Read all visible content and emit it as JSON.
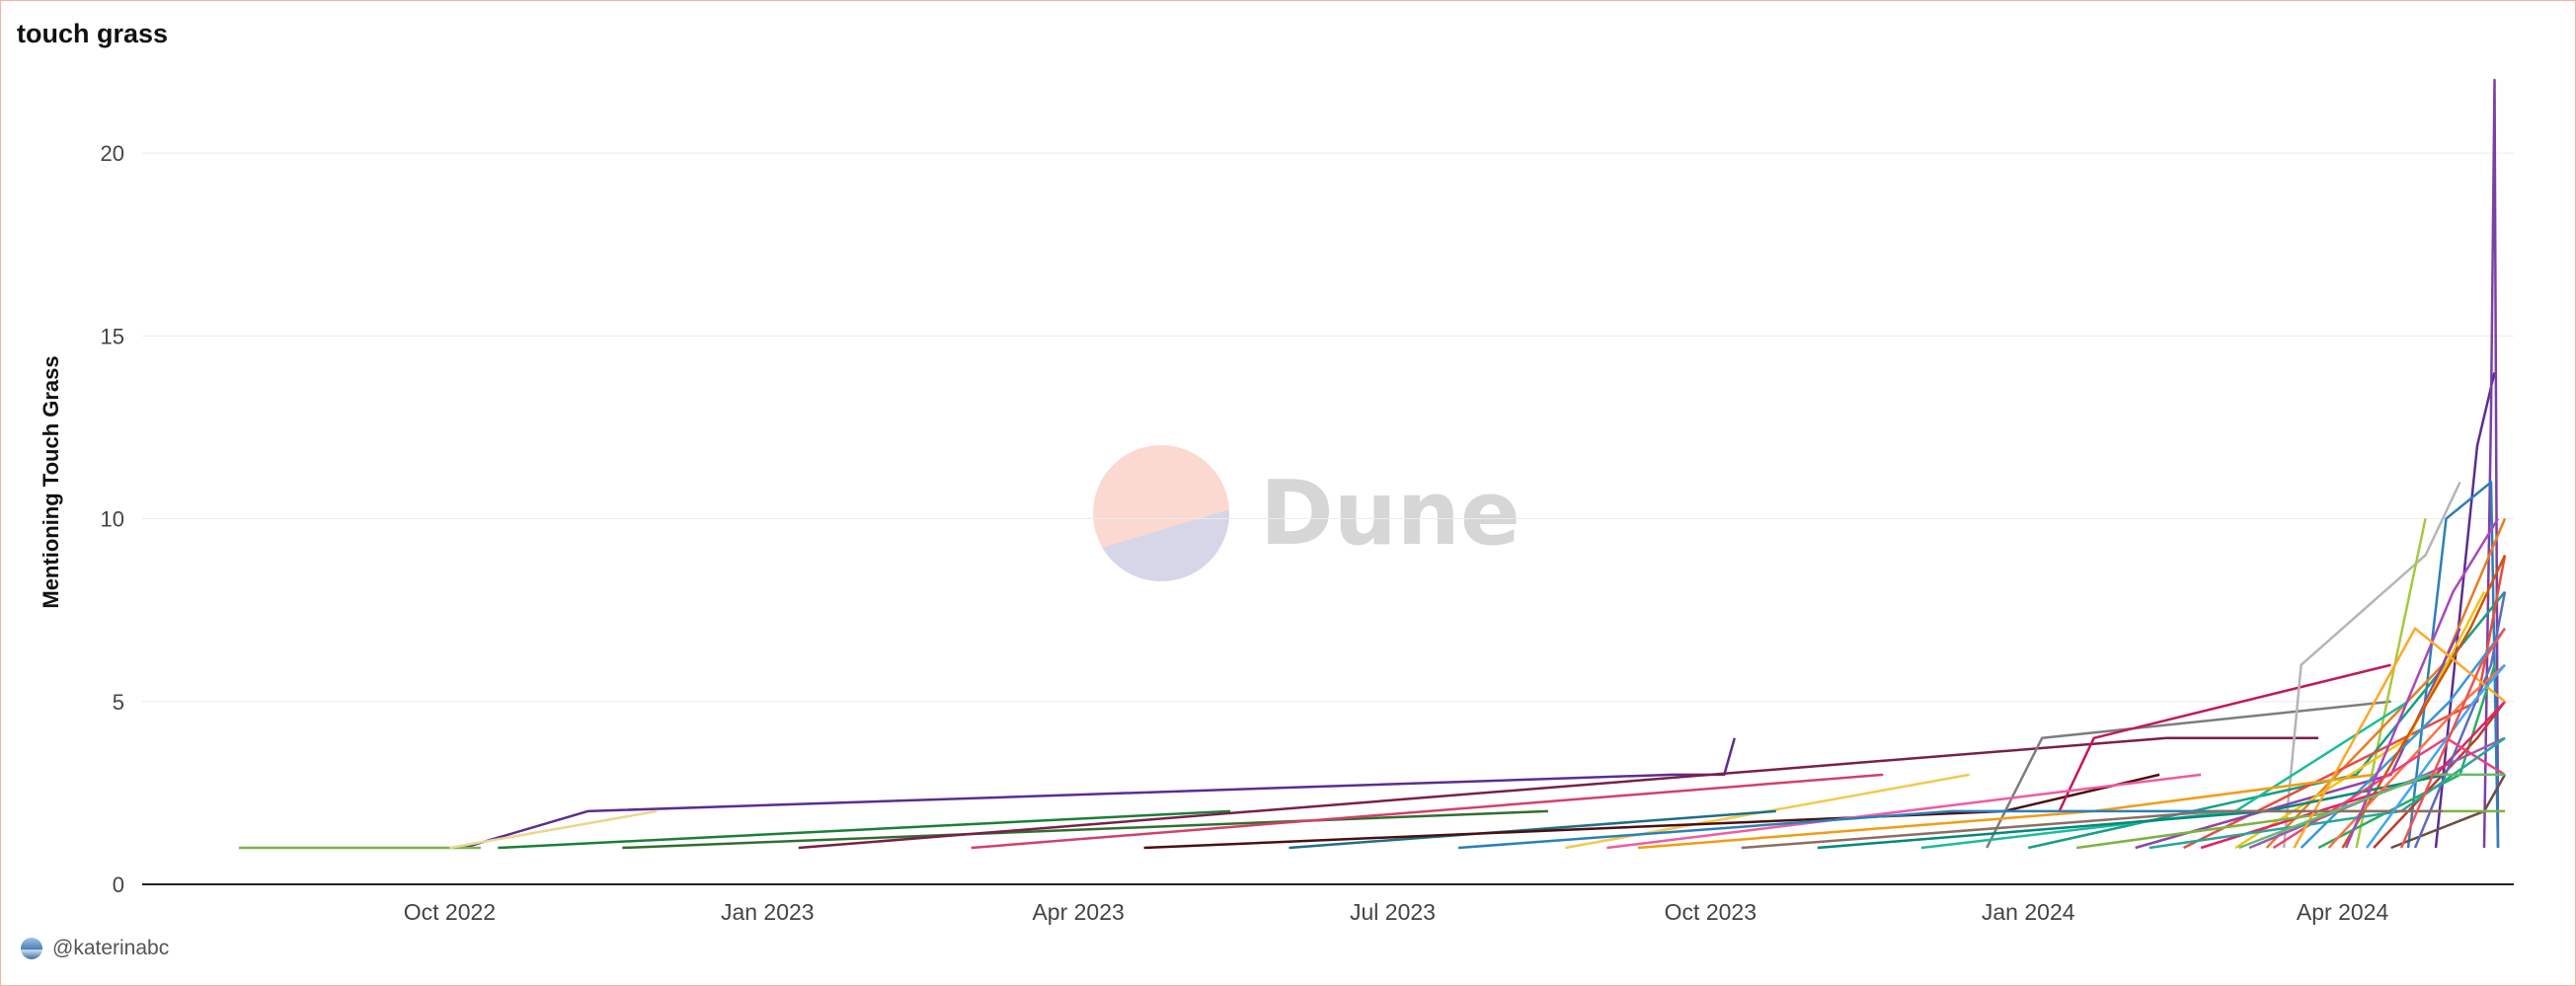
{
  "header": {
    "title": "touch grass"
  },
  "footer": {
    "author": "@katerinabc"
  },
  "watermark": {
    "text": "Dune",
    "colors": {
      "top": "#fbd8d0",
      "bottom": "#d6d6e8"
    }
  },
  "chart_data": {
    "type": "line",
    "title": "touch grass",
    "xlabel": "",
    "ylabel": "Mentioning Touch Grass",
    "x_range": [
      "2022-08-01",
      "2024-05-20"
    ],
    "x_ticks": [
      "Oct 2022",
      "Jan 2023",
      "Apr 2023",
      "Jul 2023",
      "Oct 2023",
      "Jan 2024",
      "Apr 2024"
    ],
    "x_tick_dates": [
      "2022-10-01",
      "2023-01-01",
      "2023-04-01",
      "2023-07-01",
      "2023-10-01",
      "2024-01-01",
      "2024-04-01"
    ],
    "ylim": [
      0,
      22
    ],
    "y_ticks": [
      0,
      5,
      10,
      15,
      20
    ],
    "grid": true,
    "legend": "none",
    "series": [
      {
        "color": "#5b2d90",
        "x": [
          "2022-10-05",
          "2022-11-10",
          "2023-09-20",
          "2023-10-05",
          "2023-10-08"
        ],
        "y": [
          1,
          2,
          3,
          3,
          4
        ]
      },
      {
        "color": "#7ab648",
        "x": [
          "2022-08-01",
          "2022-10-10"
        ],
        "y": [
          1,
          1
        ]
      },
      {
        "color": "#e8d890",
        "x": [
          "2022-10-01",
          "2022-11-30"
        ],
        "y": [
          1,
          2
        ]
      },
      {
        "color": "#1a7f37",
        "x": [
          "2022-10-15",
          "2023-05-15"
        ],
        "y": [
          1,
          2
        ]
      },
      {
        "color": "#2f6f2f",
        "x": [
          "2022-11-20",
          "2023-08-15"
        ],
        "y": [
          1,
          2
        ]
      },
      {
        "color": "#7a1f4a",
        "x": [
          "2023-01-10",
          "2024-02-10",
          "2024-03-25"
        ],
        "y": [
          1,
          4,
          4
        ]
      },
      {
        "color": "#d43f6b",
        "x": [
          "2023-03-01",
          "2023-11-20"
        ],
        "y": [
          1,
          3
        ]
      },
      {
        "color": "#f2c94c",
        "x": [
          "2023-08-20",
          "2023-12-15"
        ],
        "y": [
          1,
          3
        ]
      },
      {
        "color": "#1e6f86",
        "x": [
          "2023-06-01",
          "2023-10-20"
        ],
        "y": [
          1,
          2
        ]
      },
      {
        "color": "#4b0f0f",
        "x": [
          "2023-04-20",
          "2023-12-25",
          "2024-02-08"
        ],
        "y": [
          1,
          2,
          3
        ]
      },
      {
        "color": "#7d7d7d",
        "x": [
          "2023-12-20",
          "2024-01-05",
          "2024-04-15"
        ],
        "y": [
          1,
          4,
          5
        ]
      },
      {
        "color": "#c2185b",
        "x": [
          "2024-01-10",
          "2024-01-20",
          "2024-04-15"
        ],
        "y": [
          2,
          4,
          6
        ]
      },
      {
        "color": "#ef5ba1",
        "x": [
          "2023-09-01",
          "2024-02-20"
        ],
        "y": [
          1,
          3
        ]
      },
      {
        "color": "#b5b5b5",
        "x": [
          "2024-03-15",
          "2024-03-20",
          "2024-04-25",
          "2024-05-05"
        ],
        "y": [
          1,
          6,
          9,
          11
        ]
      },
      {
        "color": "#a5c93f",
        "x": [
          "2024-04-05",
          "2024-04-25"
        ],
        "y": [
          1,
          10
        ]
      },
      {
        "color": "#5a2d91",
        "x": [
          "2024-04-28",
          "2024-05-10",
          "2024-05-15"
        ],
        "y": [
          1,
          12,
          14
        ]
      },
      {
        "color": "#7b3fa8",
        "x": [
          "2024-05-12",
          "2024-05-14",
          "2024-05-15",
          "2024-05-16"
        ],
        "y": [
          1,
          13,
          22,
          1
        ]
      },
      {
        "color": "#2c7fb8",
        "x": [
          "2024-04-20",
          "2024-05-01",
          "2024-05-14",
          "2024-05-16"
        ],
        "y": [
          1,
          10,
          11,
          1
        ]
      },
      {
        "color": "#e67e22",
        "x": [
          "2024-03-10",
          "2024-04-30",
          "2024-05-18"
        ],
        "y": [
          1,
          6,
          10
        ]
      },
      {
        "color": "#16a085",
        "x": [
          "2024-01-01",
          "2024-04-05",
          "2024-05-18"
        ],
        "y": [
          1,
          3,
          8
        ]
      },
      {
        "color": "#e74c3c",
        "x": [
          "2024-02-15",
          "2024-05-10",
          "2024-05-18"
        ],
        "y": [
          1,
          5,
          9
        ]
      },
      {
        "color": "#8e44ad",
        "x": [
          "2024-02-01",
          "2024-04-15",
          "2024-05-05"
        ],
        "y": [
          1,
          3,
          7
        ]
      },
      {
        "color": "#f1c40f",
        "x": [
          "2024-03-01",
          "2024-04-20",
          "2024-05-12"
        ],
        "y": [
          1,
          4,
          8
        ]
      },
      {
        "color": "#3498db",
        "x": [
          "2024-03-20",
          "2024-05-02",
          "2024-05-18"
        ],
        "y": [
          1,
          5,
          7
        ]
      },
      {
        "color": "#1abc9c",
        "x": [
          "2023-12-01",
          "2024-03-01",
          "2024-04-20"
        ],
        "y": [
          1,
          2,
          5
        ]
      },
      {
        "color": "#d35400",
        "x": [
          "2024-04-01",
          "2024-05-08",
          "2024-05-18"
        ],
        "y": [
          1,
          7,
          9
        ]
      },
      {
        "color": "#27ae60",
        "x": [
          "2024-03-25",
          "2024-05-05",
          "2024-05-15"
        ],
        "y": [
          1,
          3,
          6
        ]
      },
      {
        "color": "#c0392b",
        "x": [
          "2024-04-10",
          "2024-05-10",
          "2024-05-18"
        ],
        "y": [
          1,
          4,
          5
        ]
      },
      {
        "color": "#9b59b6",
        "x": [
          "2024-03-05",
          "2024-04-25",
          "2024-05-18"
        ],
        "y": [
          1,
          3,
          4
        ]
      },
      {
        "color": "#f39c12",
        "x": [
          "2023-09-10",
          "2024-01-20",
          "2024-04-10"
        ],
        "y": [
          1,
          2,
          3
        ]
      },
      {
        "color": "#2980b9",
        "x": [
          "2023-07-20",
          "2023-12-10",
          "2024-03-20"
        ],
        "y": [
          1,
          2,
          2
        ]
      },
      {
        "color": "#e91e63",
        "x": [
          "2024-02-20",
          "2024-04-28",
          "2024-05-18"
        ],
        "y": [
          1,
          3,
          5
        ]
      },
      {
        "color": "#00897b",
        "x": [
          "2023-11-01",
          "2024-03-10",
          "2024-05-01"
        ],
        "y": [
          1,
          2,
          3
        ]
      },
      {
        "color": "#6d4c41",
        "x": [
          "2024-04-15",
          "2024-05-12",
          "2024-05-18"
        ],
        "y": [
          1,
          2,
          3
        ]
      },
      {
        "color": "#ff7043",
        "x": [
          "2024-03-28",
          "2024-05-06",
          "2024-05-18"
        ],
        "y": [
          1,
          5,
          6
        ]
      },
      {
        "color": "#7cb342",
        "x": [
          "2024-01-15",
          "2024-04-01",
          "2024-05-18"
        ],
        "y": [
          1,
          2,
          2
        ]
      },
      {
        "color": "#5c6bc0",
        "x": [
          "2024-04-22",
          "2024-05-14",
          "2024-05-18"
        ],
        "y": [
          1,
          6,
          8
        ]
      },
      {
        "color": "#ec407a",
        "x": [
          "2024-03-12",
          "2024-05-01",
          "2024-05-18"
        ],
        "y": [
          1,
          4,
          3
        ]
      },
      {
        "color": "#26a69a",
        "x": [
          "2024-02-05",
          "2024-04-18",
          "2024-05-18"
        ],
        "y": [
          1,
          2,
          4
        ]
      },
      {
        "color": "#ab47bc",
        "x": [
          "2024-04-02",
          "2024-05-03",
          "2024-05-16"
        ],
        "y": [
          1,
          8,
          10
        ]
      },
      {
        "color": "#ffa726",
        "x": [
          "2024-03-18",
          "2024-04-22",
          "2024-05-18"
        ],
        "y": [
          1,
          7,
          5
        ]
      },
      {
        "color": "#8d6e63",
        "x": [
          "2023-10-10",
          "2024-02-25",
          "2024-04-30"
        ],
        "y": [
          1,
          2,
          2
        ]
      },
      {
        "color": "#42a5f5",
        "x": [
          "2024-04-08",
          "2024-05-09",
          "2024-05-18"
        ],
        "y": [
          1,
          5,
          6
        ]
      },
      {
        "color": "#66bb6a",
        "x": [
          "2024-03-02",
          "2024-04-26",
          "2024-05-18"
        ],
        "y": [
          1,
          3,
          3
        ]
      },
      {
        "color": "#ef5350",
        "x": [
          "2024-04-18",
          "2024-05-11",
          "2024-05-18"
        ],
        "y": [
          1,
          6,
          7
        ]
      }
    ]
  }
}
